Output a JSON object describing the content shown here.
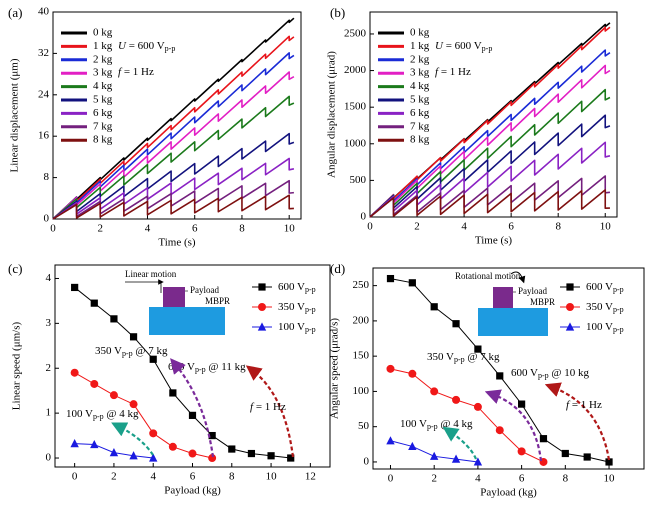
{
  "chart_data": [
    {
      "type": "line",
      "label": "(a)",
      "xlabel": "Time (s)",
      "ylabel": "Linear displacement (μm)",
      "xlim": [
        0,
        10.5
      ],
      "ylim": [
        0,
        40
      ],
      "xticks": [
        0,
        2,
        4,
        6,
        8,
        10
      ],
      "yticks": [
        0,
        8,
        16,
        24,
        32,
        40
      ],
      "x": [
        0,
        1,
        1,
        2,
        2,
        3,
        3,
        4,
        4,
        5,
        5,
        6,
        6,
        7,
        7,
        8,
        8,
        9,
        9,
        10,
        10,
        10.2
      ],
      "series": [
        {
          "name": "0 kg",
          "color": "#000000",
          "values": [
            0,
            4.2,
            3.8,
            8.0,
            7.6,
            11.8,
            11.4,
            15.6,
            15.2,
            19.4,
            19.0,
            23.2,
            22.8,
            27.0,
            26.6,
            30.8,
            30.4,
            34.6,
            34.2,
            38.4,
            38.0,
            38.8
          ]
        },
        {
          "name": "1 kg",
          "color": "#e8141b",
          "values": [
            0,
            4.25,
            3.45,
            7.7,
            6.9,
            11.15,
            10.35,
            14.6,
            13.8,
            18.05,
            17.25,
            21.5,
            20.7,
            24.95,
            24.15,
            28.4,
            27.6,
            31.85,
            31.05,
            35.3,
            34.5,
            35.2
          ]
        },
        {
          "name": "2 kg",
          "color": "#1a2bd6",
          "values": [
            0,
            4.2,
            3.1,
            7.3,
            6.2,
            10.4,
            9.3,
            13.5,
            12.4,
            16.6,
            15.5,
            19.7,
            18.6,
            22.8,
            21.7,
            25.9,
            24.8,
            29.0,
            27.9,
            32.1,
            31.0,
            31.6
          ]
        },
        {
          "name": "3 kg",
          "color": "#e21fc4",
          "values": [
            0,
            4.1,
            2.7,
            6.8,
            5.4,
            9.5,
            8.1,
            12.2,
            10.8,
            14.9,
            13.5,
            17.6,
            16.2,
            20.3,
            18.9,
            23.0,
            21.6,
            25.7,
            24.3,
            28.4,
            27.0,
            27.5
          ]
        },
        {
          "name": "4 kg",
          "color": "#1b7a1b",
          "values": [
            0,
            3.9,
            2.2,
            6.1,
            4.4,
            8.3,
            6.6,
            10.5,
            8.8,
            12.7,
            11.0,
            14.9,
            13.2,
            17.1,
            15.4,
            19.3,
            17.6,
            21.5,
            19.8,
            23.7,
            22.0,
            22.4
          ]
        },
        {
          "name": "5 kg",
          "color": "#12127e",
          "values": [
            0,
            3.45,
            1.45,
            4.9,
            2.9,
            6.35,
            4.35,
            7.8,
            5.8,
            9.25,
            7.25,
            10.7,
            8.7,
            12.15,
            10.15,
            13.6,
            11.6,
            15.05,
            13.05,
            16.5,
            14.5,
            14.8
          ]
        },
        {
          "name": "6 kg",
          "color": "#8a22c4",
          "values": [
            0,
            3.15,
            0.95,
            4.1,
            1.9,
            5.05,
            2.85,
            6.0,
            3.8,
            6.95,
            4.75,
            7.9,
            5.7,
            8.85,
            6.65,
            9.8,
            7.6,
            10.75,
            8.55,
            11.7,
            9.5,
            9.7
          ]
        },
        {
          "name": "7 kg",
          "color": "#74207e",
          "values": [
            0,
            2.9,
            0.5,
            3.4,
            1.0,
            3.9,
            1.5,
            4.4,
            2.0,
            4.9,
            2.5,
            5.4,
            3.0,
            5.9,
            3.5,
            6.4,
            4.0,
            6.9,
            4.5,
            7.4,
            5.0,
            5.1
          ]
        },
        {
          "name": "8 kg",
          "color": "#7e1010",
          "values": [
            0,
            2.8,
            0.2,
            3.0,
            0.4,
            3.2,
            0.6,
            3.4,
            0.8,
            3.6,
            1.0,
            3.8,
            1.2,
            4.0,
            1.4,
            4.2,
            1.6,
            4.4,
            1.8,
            4.6,
            2.0,
            2.05
          ]
        }
      ],
      "annotations": [
        {
          "italic": "U",
          "text": " = 600 V",
          "sub": "p-p"
        },
        {
          "italic": "f",
          "text": " = 1 Hz"
        }
      ]
    },
    {
      "type": "line",
      "label": "(b)",
      "xlabel": "Time (s)",
      "ylabel": "Angular displacement (μrad)",
      "xlim": [
        0,
        10.5
      ],
      "ylim": [
        0,
        2800
      ],
      "xticks": [
        0,
        2,
        4,
        6,
        8,
        10
      ],
      "yticks": [
        0,
        500,
        1000,
        1500,
        2000,
        2500
      ],
      "x": [
        0,
        1,
        1,
        2,
        2,
        3,
        3,
        4,
        4,
        5,
        5,
        6,
        6,
        7,
        7,
        8,
        8,
        9,
        9,
        10,
        10,
        10.2
      ],
      "series": [
        {
          "name": "0 kg",
          "color": "#000000",
          "values": [
            0,
            290,
            260,
            550,
            520,
            810,
            780,
            1070,
            1040,
            1330,
            1300,
            1590,
            1560,
            1850,
            1820,
            2110,
            2080,
            2370,
            2340,
            2630,
            2600,
            2652
          ]
        },
        {
          "name": "1 kg",
          "color": "#e8141b",
          "values": [
            0,
            304,
            254,
            558,
            508,
            812,
            762,
            1066,
            1016,
            1320,
            1270,
            1574,
            1524,
            1828,
            1778,
            2082,
            2032,
            2336,
            2286,
            2590,
            2540,
            2591
          ]
        },
        {
          "name": "2 kg",
          "color": "#1a2bd6",
          "values": [
            0,
            300,
            220,
            520,
            440,
            740,
            660,
            960,
            880,
            1180,
            1100,
            1400,
            1320,
            1620,
            1540,
            1840,
            1760,
            2060,
            1980,
            2280,
            2200,
            2244
          ]
        },
        {
          "name": "3 kg",
          "color": "#e21fc4",
          "values": [
            0,
            306,
            196,
            502,
            392,
            698,
            588,
            894,
            784,
            1090,
            980,
            1286,
            1176,
            1482,
            1372,
            1678,
            1568,
            1874,
            1764,
            2070,
            1960,
            2000
          ]
        },
        {
          "name": "4 kg",
          "color": "#1b7a1b",
          "values": [
            0,
            300,
            160,
            460,
            320,
            620,
            480,
            780,
            640,
            940,
            800,
            1100,
            960,
            1260,
            1120,
            1420,
            1280,
            1580,
            1440,
            1740,
            1600,
            1632
          ]
        },
        {
          "name": "5 kg",
          "color": "#12127e",
          "values": [
            0,
            292,
            122,
            414,
            244,
            536,
            366,
            658,
            488,
            780,
            610,
            902,
            732,
            1024,
            854,
            1146,
            976,
            1268,
            1098,
            1390,
            1220,
            1244
          ]
        },
        {
          "name": "6 kg",
          "color": "#8a22c4",
          "values": [
            0,
            282,
            82,
            364,
            164,
            446,
            246,
            528,
            328,
            610,
            410,
            692,
            492,
            774,
            574,
            856,
            656,
            938,
            738,
            1020,
            820,
            836
          ]
        },
        {
          "name": "7 kg",
          "color": "#74207e",
          "values": [
            0,
            263,
            33,
            296,
            66,
            329,
            99,
            362,
            132,
            395,
            165,
            428,
            198,
            461,
            231,
            494,
            264,
            527,
            297,
            560,
            330,
            337
          ]
        },
        {
          "name": "8 kg",
          "color": "#7e1010",
          "values": [
            0,
            262,
            12,
            274,
            24,
            286,
            36,
            298,
            48,
            310,
            60,
            322,
            72,
            334,
            84,
            346,
            96,
            358,
            108,
            370,
            120,
            122
          ]
        }
      ],
      "annotations": [
        {
          "italic": "U",
          "text": " = 600 V",
          "sub": "p-p"
        },
        {
          "italic": "f",
          "text": " = 1 Hz"
        }
      ]
    },
    {
      "type": "line",
      "label": "(c)",
      "xlabel": "Payload (kg)",
      "ylabel": "Linear speed (μm/s)",
      "xlim": [
        -1,
        13
      ],
      "ylim": [
        -0.2,
        4.3
      ],
      "xticks": [
        0,
        2,
        4,
        6,
        8,
        10,
        12
      ],
      "yticks": [
        0,
        1,
        2,
        3,
        4
      ],
      "series": [
        {
          "name": "600 V",
          "name_sub": "p-p",
          "color": "#000000",
          "marker": "square",
          "x": [
            0,
            1,
            2,
            3,
            4,
            5,
            6,
            7,
            8,
            9,
            10,
            11
          ],
          "values": [
            3.8,
            3.45,
            3.1,
            2.7,
            2.2,
            1.45,
            0.95,
            0.5,
            0.2,
            0.1,
            0.05,
            0
          ]
        },
        {
          "name": "350 V",
          "name_sub": "p-p",
          "color": "#f01818",
          "marker": "circle",
          "x": [
            0,
            1,
            2,
            3,
            4,
            5,
            6,
            7
          ],
          "values": [
            1.9,
            1.65,
            1.4,
            1.2,
            0.55,
            0.25,
            0.1,
            0
          ]
        },
        {
          "name": "100 V",
          "name_sub": "p-p",
          "color": "#1a1ae0",
          "marker": "triangle",
          "x": [
            0,
            1,
            2,
            3,
            4
          ],
          "values": [
            0.32,
            0.3,
            0.12,
            0.05,
            0
          ]
        }
      ],
      "annotations": [
        {
          "text": "600 V",
          "sub": "p-p",
          "after": " @ 11 kg",
          "color": "#000000",
          "arrow_color": "#b01818"
        },
        {
          "text": "350 V",
          "sub": "p-p",
          "after": " @ 7 kg",
          "color": "#e01818",
          "arrow_color": "#7a2a9a"
        },
        {
          "text": "100 V",
          "sub": "p-p",
          "after": " @ 4 kg",
          "color": "#2020d0",
          "arrow_color": "#1aa08a"
        },
        {
          "italic": "f",
          "text": " = 1 Hz",
          "color": "#000000"
        }
      ],
      "inset": {
        "caption": "Linear motion",
        "top": "Payload",
        "bottom": "MBPR"
      }
    },
    {
      "type": "line",
      "label": "(d)",
      "xlabel": "Payload (kg)",
      "ylabel": "Angular speed (μrad/s)",
      "xlim": [
        -0.8,
        11.6
      ],
      "ylim": [
        -10,
        275
      ],
      "xticks": [
        0,
        2,
        4,
        6,
        8,
        10
      ],
      "yticks": [
        0,
        50,
        100,
        150,
        200,
        250
      ],
      "series": [
        {
          "name": "600 V",
          "name_sub": "p-p",
          "color": "#000000",
          "marker": "square",
          "x": [
            0,
            1,
            2,
            3,
            4,
            5,
            6,
            7,
            8,
            9,
            10
          ],
          "values": [
            260,
            254,
            220,
            196,
            160,
            122,
            82,
            33,
            12,
            7,
            0
          ]
        },
        {
          "name": "350 V",
          "name_sub": "p-p",
          "color": "#f01818",
          "marker": "circle",
          "x": [
            0,
            1,
            2,
            3,
            4,
            5,
            6,
            7
          ],
          "values": [
            132,
            125,
            100,
            88,
            78,
            45,
            15,
            0
          ]
        },
        {
          "name": "100 V",
          "name_sub": "p-p",
          "color": "#1a1ae0",
          "marker": "triangle",
          "x": [
            0,
            1,
            2,
            3,
            4
          ],
          "values": [
            30,
            22,
            8,
            4,
            0
          ]
        }
      ],
      "annotations": [
        {
          "text": "600 V",
          "sub": "p-p",
          "after": " @ 10 kg",
          "color": "#000000",
          "arrow_color": "#b01818"
        },
        {
          "text": "350 V",
          "sub": "p-p",
          "after": " @ 7 kg",
          "color": "#e01818",
          "arrow_color": "#7a2a9a"
        },
        {
          "text": "100 V",
          "sub": "p-p",
          "after": " @ 4 kg",
          "color": "#2020d0",
          "arrow_color": "#1aa08a"
        },
        {
          "italic": "f",
          "text": " = 1 Hz",
          "color": "#000000"
        }
      ],
      "inset": {
        "caption": "Rotational motion",
        "top": "Payload",
        "bottom": "MBPR"
      }
    }
  ]
}
